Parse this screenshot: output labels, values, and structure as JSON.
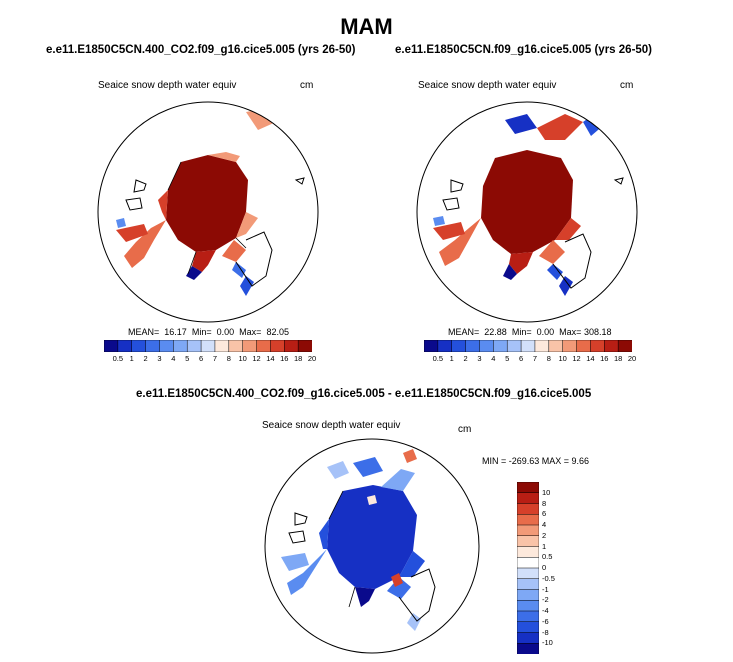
{
  "season": "MAM",
  "panels": [
    {
      "title": "e.e11.E1850C5CN.400_CO2.f09_g16.cice5.005 (yrs 26-50)",
      "variable": "Seaice snow depth water equiv",
      "units": "cm",
      "stats": {
        "mean_label": "MEAN=",
        "mean": "16.17",
        "min_label": "Min=",
        "min": "0.00",
        "max_label": "Max=",
        "max": "82.05"
      }
    },
    {
      "title": "e.e11.E1850C5CN.f09_g16.cice5.005 (yrs 26-50)",
      "variable": "Seaice snow depth water equiv",
      "units": "cm",
      "stats": {
        "mean_label": "MEAN=",
        "mean": "22.88",
        "min_label": "Min=",
        "min": "0.00",
        "max_label": "Max=",
        "max": "308.18"
      }
    }
  ],
  "abs_colorbar": {
    "labels": [
      "0.5",
      "1",
      "2",
      "3",
      "4",
      "5",
      "6",
      "7",
      "8",
      "10",
      "12",
      "14",
      "16",
      "18",
      "20"
    ],
    "colors": [
      "#0a0a8c",
      "#1630c4",
      "#2450dc",
      "#3c6ee8",
      "#5a8cf0",
      "#7ea8f5",
      "#a6c2f8",
      "#d2e0fa",
      "#fde9dc",
      "#f9c3a8",
      "#f29a78",
      "#e86c4a",
      "#d6402a",
      "#b81e14",
      "#8c0a04"
    ]
  },
  "diff_panel": {
    "title": "e.e11.E1850C5CN.400_CO2.f09_g16.cice5.005 - e.e11.E1850C5CN.f09_g16.cice5.005",
    "variable": "Seaice snow depth water equiv",
    "units": "cm",
    "minmax": "MIN = -269.63 MAX =   9.66"
  },
  "diff_colorbar": {
    "labels": [
      "10",
      "8",
      "6",
      "4",
      "2",
      "1",
      "0.5",
      "0",
      "-0.5",
      "-1",
      "-2",
      "-4",
      "-6",
      "-8",
      "-10"
    ],
    "colors": [
      "#8c0a04",
      "#b81e14",
      "#d6402a",
      "#e86c4a",
      "#f29a78",
      "#f9c3a8",
      "#fde9dc",
      "#ffffff",
      "#d2e0fa",
      "#a6c2f8",
      "#7ea8f5",
      "#5a8cf0",
      "#3c6ee8",
      "#2450dc",
      "#1630c4",
      "#0a0a8c"
    ]
  },
  "colors": {
    "dark_red": "#8c0a04",
    "mid_red": "#d6402a",
    "light_red": "#f29a78",
    "dark_blue": "#0a0a8c",
    "mid_blue": "#2450dc",
    "light_blue": "#7ea8f5"
  }
}
